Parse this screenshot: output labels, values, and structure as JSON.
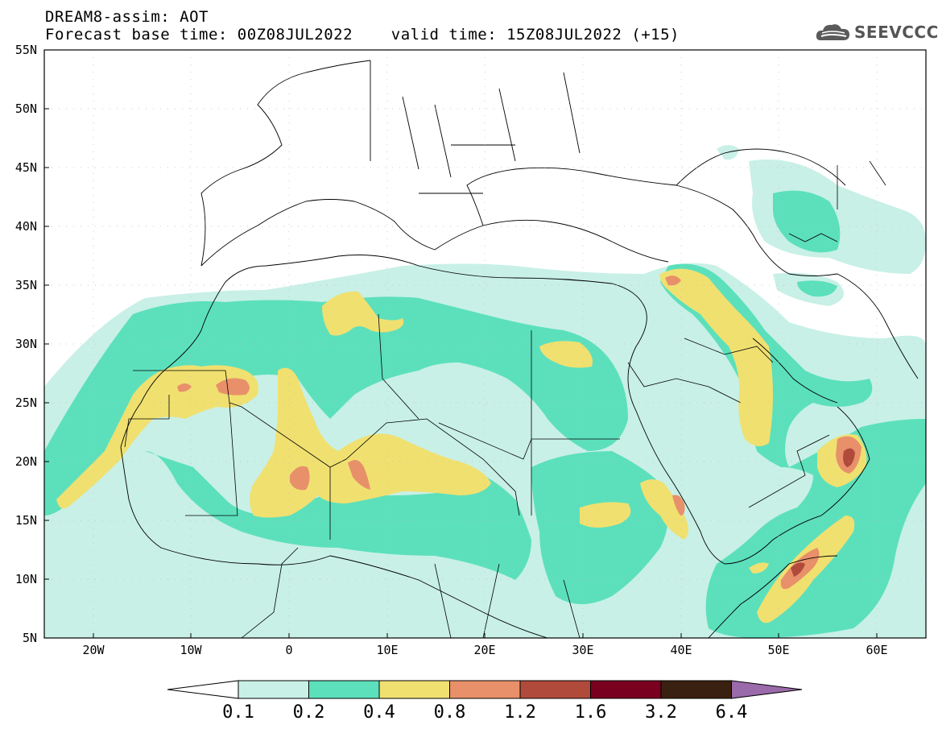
{
  "header": {
    "line1": "DREAM8-assim: AOT",
    "line2": "Forecast base time: 00Z08JUL2022    valid time: 15Z08JUL2022 (+15)"
  },
  "logo": {
    "text": "SEEVCCC",
    "icon": "cloud-logo-icon"
  },
  "map": {
    "lon_range": [
      -25,
      65
    ],
    "lat_range": [
      5,
      55
    ],
    "lat_labels": [
      "5N",
      "10N",
      "15N",
      "20N",
      "25N",
      "30N",
      "35N",
      "40N",
      "45N",
      "50N",
      "55N"
    ],
    "lon_labels": [
      "20W",
      "10W",
      "0",
      "10E",
      "20E",
      "30E",
      "40E",
      "50E",
      "60E"
    ]
  },
  "colorbar": {
    "labels": [
      "0.1",
      "0.2",
      "0.4",
      "0.8",
      "1.2",
      "1.6",
      "3.2",
      "6.4"
    ],
    "colors": [
      "#ffffff",
      "#c8f0e6",
      "#5ce0bc",
      "#f0e070",
      "#e8906a",
      "#b04a3a",
      "#7a0020",
      "#3a2010",
      "#9a6aaa"
    ]
  },
  "colors": {
    "level1": "#c8f0e6",
    "level2": "#5ce0bc",
    "level3": "#f0e070",
    "level4": "#e8906a",
    "level5": "#b04a3a"
  }
}
